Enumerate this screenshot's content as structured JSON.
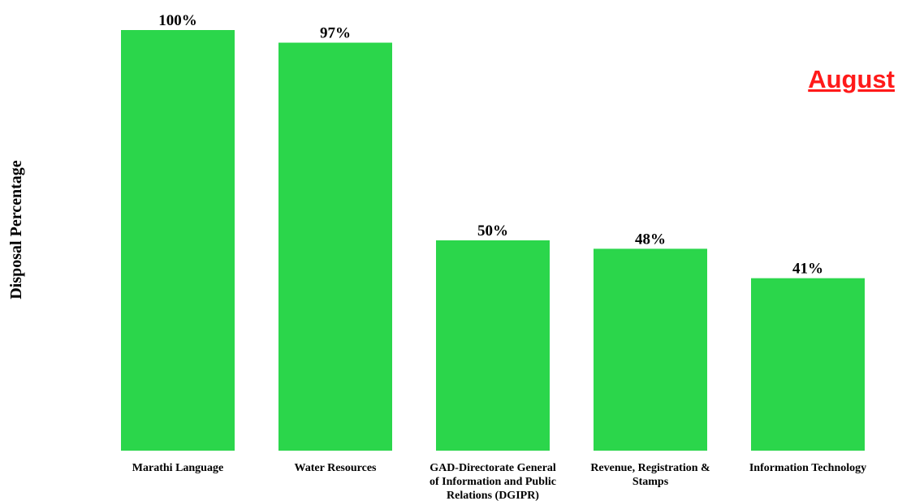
{
  "chart_data": {
    "type": "bar",
    "ylabel": "Disposal Percentage",
    "xlabel": "",
    "categories": [
      [
        "Marathi Language"
      ],
      [
        "Water Resources"
      ],
      [
        "GAD-Directorate General",
        "of Information and Public",
        "Relations (DGIPR)"
      ],
      [
        "Revenue, Registration &",
        "Stamps"
      ],
      [
        "Information Technology"
      ]
    ],
    "values": [
      100,
      97,
      50,
      48,
      41
    ],
    "value_labels": [
      "100%",
      "97%",
      "50%",
      "48%",
      "41%"
    ],
    "ylim": [
      0,
      100
    ],
    "grid": false,
    "legend": "none",
    "annotation": "August"
  },
  "colors": {
    "bar": "#2bd64b",
    "annotation": "#ff1a1a",
    "text": "#000000"
  }
}
